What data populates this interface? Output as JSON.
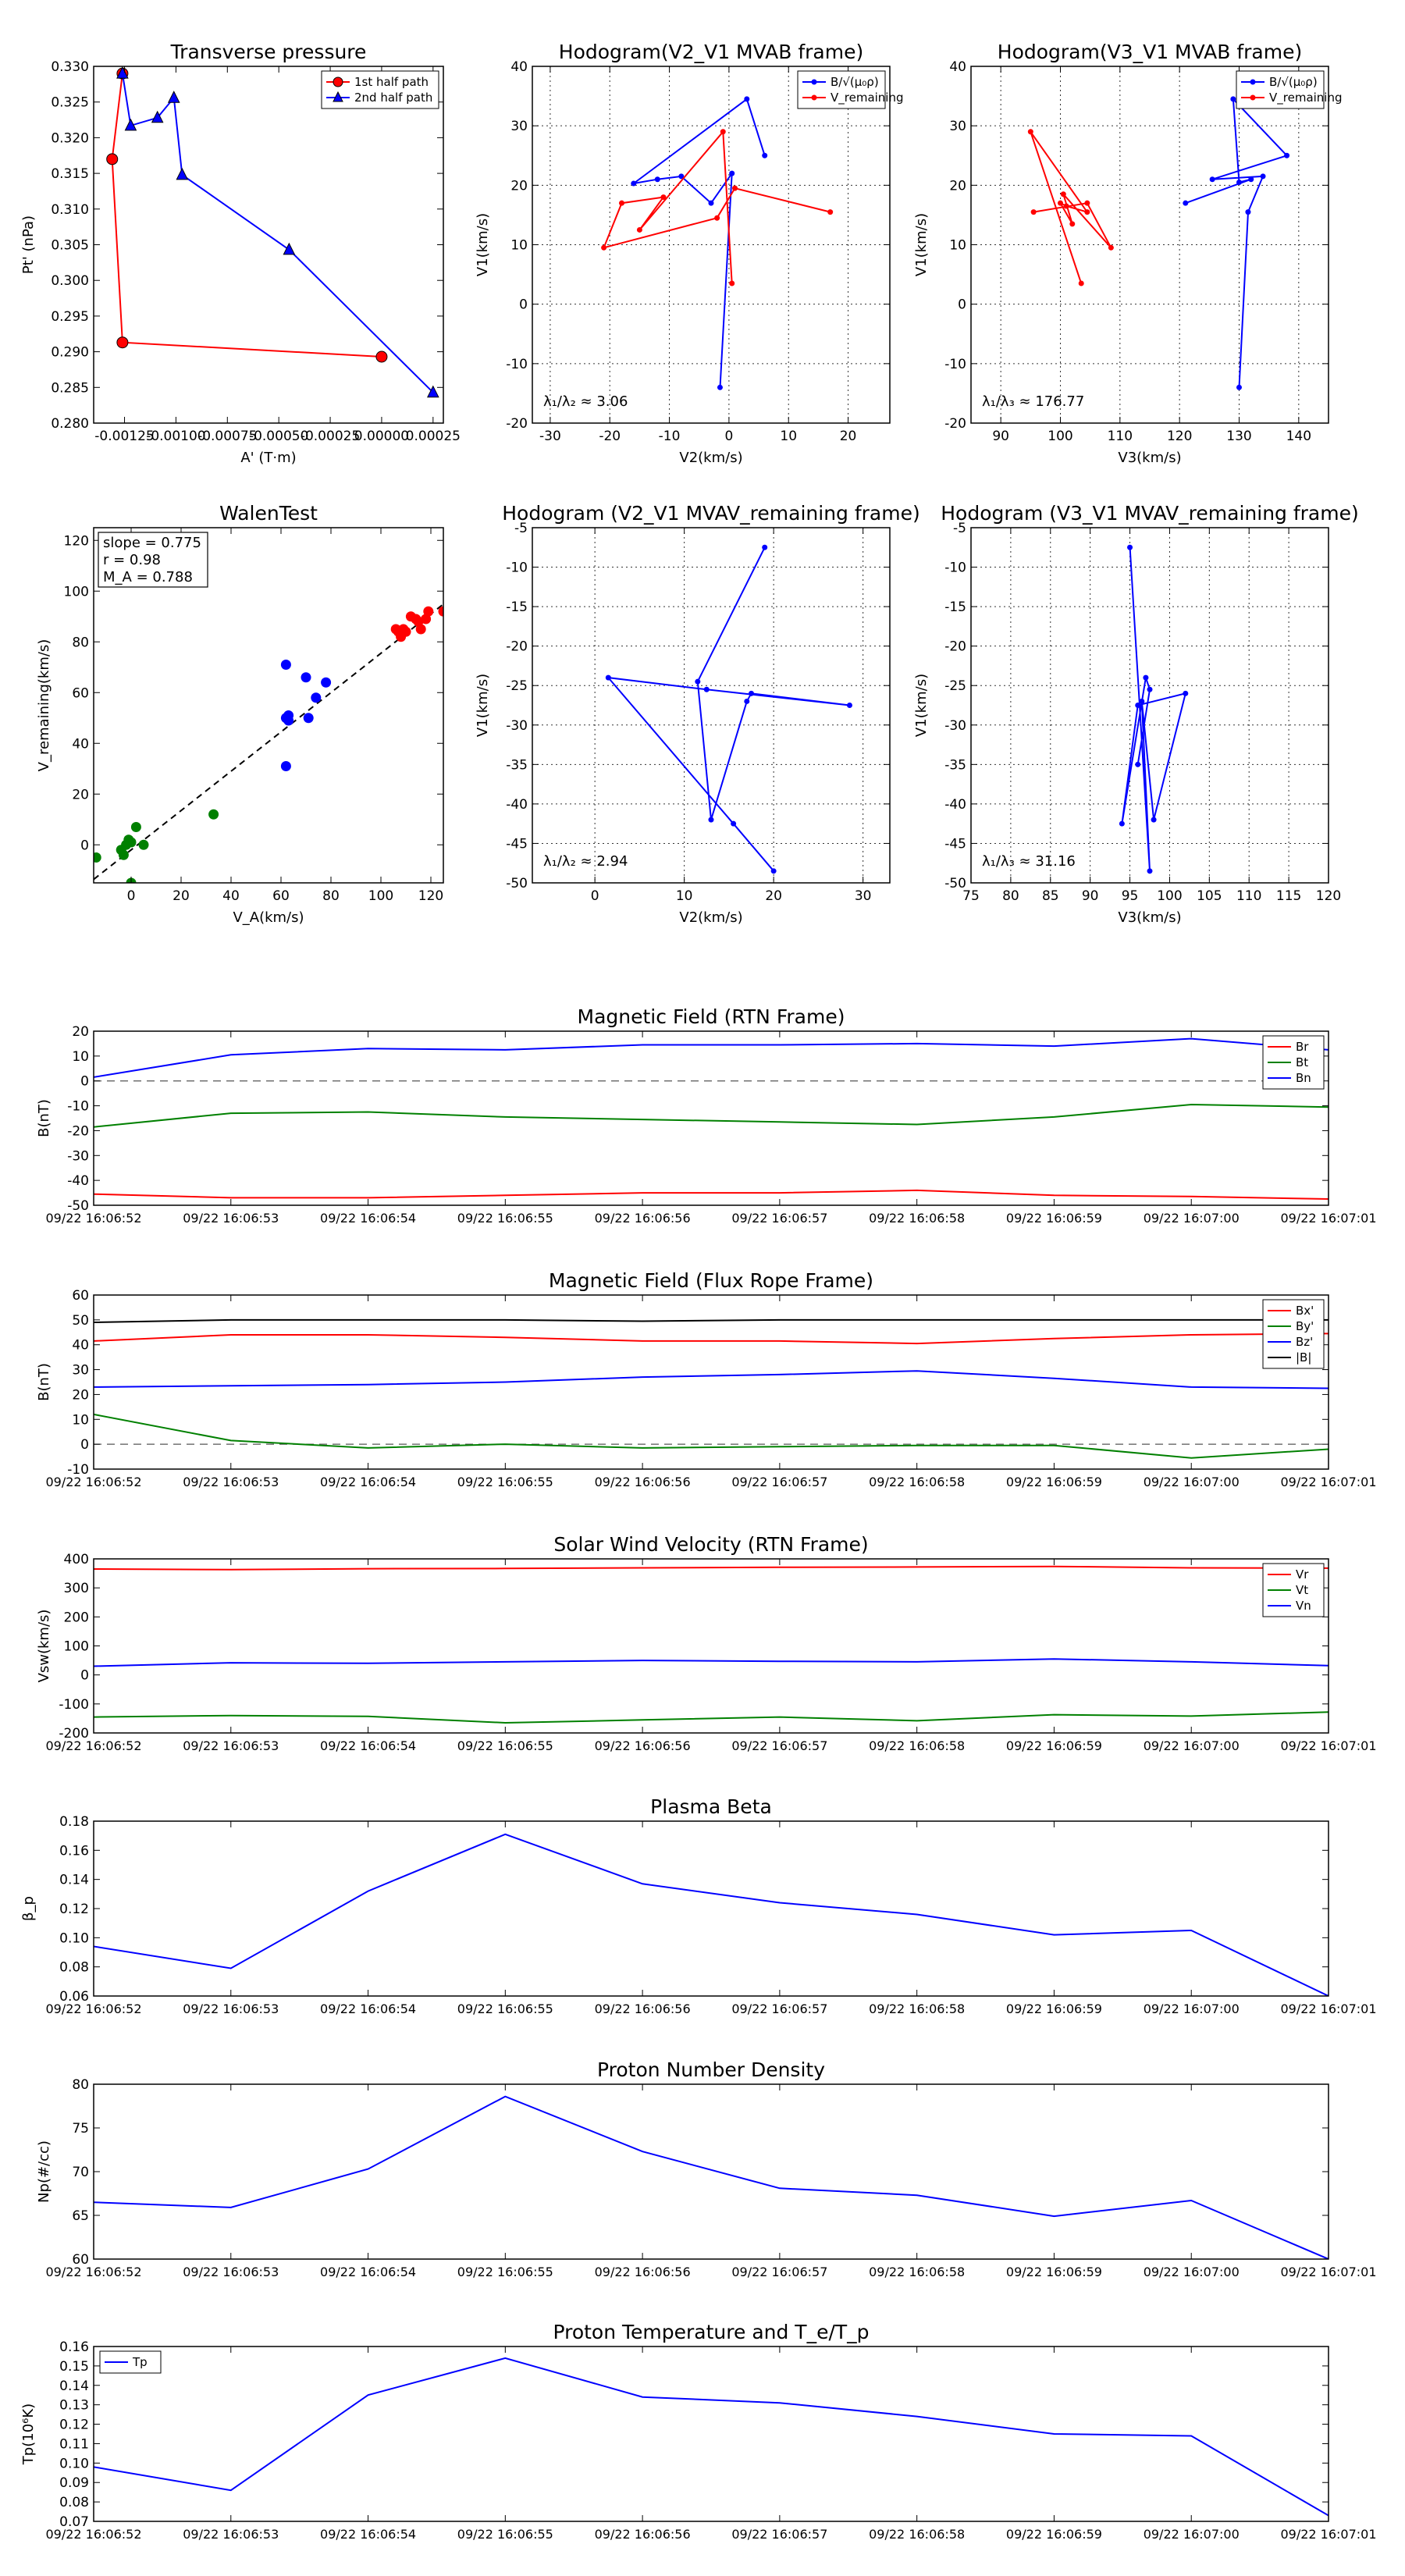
{
  "chart_data": [
    {
      "id": "tp",
      "type": "line",
      "title": "Transverse pressure",
      "xlabel": "A' (T·m)",
      "ylabel": "Pt' (nPa)",
      "xlim": [
        -0.0014,
        0.0003
      ],
      "ylim": [
        0.28,
        0.33
      ],
      "xticks": [
        -0.00125,
        -0.001,
        -0.00075,
        -0.0005,
        -0.00025,
        0.0,
        0.00025
      ],
      "xtick_labels": [
        "-0.00125",
        "-0.00100",
        "-0.00075",
        "-0.00050",
        "-0.00025",
        "0.00000",
        "0.00025"
      ],
      "yticks": [
        0.28,
        0.285,
        0.29,
        0.295,
        0.3,
        0.305,
        0.31,
        0.315,
        0.32,
        0.325,
        0.33
      ],
      "ytick_labels": [
        "0.280",
        "0.285",
        "0.290",
        "0.295",
        "0.300",
        "0.305",
        "0.310",
        "0.315",
        "0.320",
        "0.325",
        "0.330"
      ],
      "grid": false,
      "legend": "top-right",
      "series": [
        {
          "name": "1st half path",
          "color": "#ff0000",
          "marker": "circle",
          "x": [
            -0.00126,
            -0.00131,
            -0.00126,
            0.0
          ],
          "y": [
            0.329,
            0.317,
            0.2913,
            0.2893
          ]
        },
        {
          "name": "2nd half path",
          "color": "#0000ff",
          "marker": "triangle",
          "x": [
            -0.00126,
            -0.00122,
            -0.00109,
            -0.00101,
            -0.00097,
            -0.00045,
            0.00025
          ],
          "y": [
            0.329,
            0.3217,
            0.3228,
            0.3256,
            0.3148,
            0.3043,
            0.2843
          ]
        }
      ]
    },
    {
      "id": "h1",
      "type": "line",
      "title": "Hodogram(V2_V1 MVAB frame)",
      "xlabel": "V2(km/s)",
      "ylabel": "V1(km/s)",
      "xlim": [
        -33,
        27
      ],
      "ylim": [
        -20,
        40
      ],
      "xticks": [
        -30,
        -20,
        -10,
        0,
        10,
        20
      ],
      "yticks": [
        -20,
        -10,
        0,
        10,
        20,
        30,
        40
      ],
      "grid": true,
      "legend": "top-right",
      "annotation": "λ₁/λ₂ ≈ 3.06",
      "series": [
        {
          "name": "B/√(μ₀ρ)",
          "color": "#0000ff",
          "x": [
            -1.5,
            0.5,
            -3,
            -8,
            -12,
            -16,
            3,
            6
          ],
          "y": [
            -14,
            22,
            17,
            21.5,
            21,
            20.3,
            34.5,
            25
          ]
        },
        {
          "name": "V_remaining",
          "color": "#ff0000",
          "x": [
            0.5,
            -1,
            -15,
            -11,
            -18,
            -21,
            -2,
            1,
            17
          ],
          "y": [
            3.5,
            29,
            12.5,
            18,
            17,
            9.5,
            14.5,
            19.5,
            15.5
          ]
        }
      ]
    },
    {
      "id": "h2",
      "type": "line",
      "title": "Hodogram(V3_V1 MVAB frame)",
      "xlabel": "V3(km/s)",
      "ylabel": "V1(km/s)",
      "xlim": [
        85,
        145
      ],
      "ylim": [
        -20,
        40
      ],
      "xticks": [
        90,
        100,
        110,
        120,
        130,
        140
      ],
      "yticks": [
        -20,
        -10,
        0,
        10,
        20,
        30,
        40
      ],
      "grid": true,
      "legend": "top-right",
      "annotation": "λ₁/λ₃ ≈ 176.77",
      "series": [
        {
          "name": "B/√(μ₀ρ)",
          "color": "#0000ff",
          "x": [
            130,
            131.5,
            134,
            125.5,
            138,
            129,
            130,
            132,
            121
          ],
          "y": [
            -14,
            15.5,
            21.5,
            21,
            25,
            34.5,
            20.5,
            21,
            17
          ]
        },
        {
          "name": "V_remaining",
          "color": "#ff0000",
          "x": [
            103.5,
            95,
            104.5,
            101,
            100,
            102,
            100.5,
            108.5,
            104.5,
            95.5
          ],
          "y": [
            3.5,
            29,
            15.5,
            16.5,
            17,
            13.5,
            18.5,
            9.5,
            17,
            15.5
          ]
        }
      ]
    },
    {
      "id": "walen",
      "type": "scatter",
      "title": "WalenTest",
      "xlabel": "V_A(km/s)",
      "ylabel": "V_remaining(km/s)",
      "xlim": [
        -15,
        125
      ],
      "ylim": [
        -15,
        125
      ],
      "xticks": [
        0,
        20,
        40,
        60,
        80,
        100,
        120
      ],
      "yticks": [
        0,
        20,
        40,
        60,
        80,
        100,
        120
      ],
      "grid": false,
      "stats": [
        "slope = 0.775",
        "r = 0.98",
        "M_A = 0.788"
      ],
      "fit": {
        "slope": 0.775,
        "intercept": -2
      },
      "series": [
        {
          "name": "green",
          "color": "#008000",
          "x": [
            -14,
            -4,
            -2,
            -1,
            -3,
            0,
            2,
            5,
            33,
            0
          ],
          "y": [
            -5,
            -2,
            0,
            2,
            -4,
            1,
            7,
            0,
            12,
            -15
          ]
        },
        {
          "name": "blue",
          "color": "#0000ff",
          "x": [
            62,
            63,
            62,
            70,
            71,
            74,
            78,
            62,
            63
          ],
          "y": [
            71,
            51,
            50,
            66,
            50,
            58,
            64,
            31,
            49
          ]
        },
        {
          "name": "red",
          "color": "#ff0000",
          "x": [
            106,
            108,
            110,
            112,
            109,
            115,
            116,
            118,
            114,
            119,
            125,
            107
          ],
          "y": [
            85,
            82,
            84,
            90,
            85,
            88,
            85,
            89,
            89,
            92,
            92,
            84
          ]
        }
      ]
    },
    {
      "id": "h3",
      "type": "line",
      "title": "Hodogram (V2_V1 MVAV_remaining frame)",
      "xlabel": "V2(km/s)",
      "ylabel": "V1(km/s)",
      "xlim": [
        -7,
        33
      ],
      "ylim": [
        -50,
        -5
      ],
      "xticks": [
        0,
        10,
        20,
        30
      ],
      "yticks": [
        -50,
        -45,
        -40,
        -35,
        -30,
        -25,
        -20,
        -15,
        -10,
        -5
      ],
      "grid": true,
      "annotation": "λ₁/λ₂ ≈ 2.94",
      "series": [
        {
          "name": "line",
          "color": "#0000ff",
          "x": [
            19,
            11.5,
            13,
            17,
            17.5,
            28.5,
            12.5,
            1.5,
            15.5,
            20
          ],
          "y": [
            -7.5,
            -24.5,
            -42,
            -27,
            -26,
            -27.5,
            -25.5,
            -24,
            -42.5,
            -48.5
          ]
        }
      ]
    },
    {
      "id": "h4",
      "type": "line",
      "title": "Hodogram (V3_V1 MVAV_remaining frame)",
      "xlabel": "V3(km/s)",
      "ylabel": "V1(km/s)",
      "xlim": [
        75,
        120
      ],
      "ylim": [
        -50,
        -5
      ],
      "xticks": [
        75,
        80,
        85,
        90,
        95,
        100,
        105,
        110,
        115,
        120
      ],
      "yticks": [
        -50,
        -45,
        -40,
        -35,
        -30,
        -25,
        -20,
        -15,
        -10,
        -5
      ],
      "grid": true,
      "annotation": "λ₁/λ₃ ≈ 31.16",
      "series": [
        {
          "name": "line",
          "color": "#0000ff",
          "x": [
            95,
            97.5,
            96.5,
            98,
            102,
            96,
            94,
            97,
            97.5,
            96
          ],
          "y": [
            -7.5,
            -48.5,
            -27,
            -42,
            -26,
            -27.5,
            -42.5,
            -24,
            -25.5,
            -35
          ]
        }
      ]
    },
    {
      "id": "mag_rtn",
      "type": "line",
      "title": "Magnetic Field (RTN Frame)",
      "xlabel": "",
      "ylabel": "B(nT)",
      "categories": [
        "09/22 16:06:52",
        "09/22 16:06:53",
        "09/22 16:06:54",
        "09/22 16:06:55",
        "09/22 16:06:56",
        "09/22 16:06:57",
        "09/22 16:06:58",
        "09/22 16:06:59",
        "09/22 16:07:00",
        "09/22 16:07:01"
      ],
      "ylim": [
        -50,
        20
      ],
      "yticks": [
        -50,
        -40,
        -30,
        -20,
        -10,
        0,
        10,
        20
      ],
      "zero_line": true,
      "legend": "top-right",
      "series": [
        {
          "name": "Br",
          "color": "#ff0000",
          "values": [
            -45.5,
            -47,
            -47,
            -46,
            -45,
            -45,
            -44,
            -46,
            -46.5,
            -47.5
          ]
        },
        {
          "name": "Bt",
          "color": "#008000",
          "values": [
            -18.5,
            -13,
            -12.5,
            -14.5,
            -15.5,
            -16.5,
            -17.5,
            -14.5,
            -9.5,
            -10.5
          ]
        },
        {
          "name": "Bn",
          "color": "#0000ff",
          "values": [
            1.5,
            10.5,
            13,
            12.5,
            14.5,
            14.5,
            15,
            14,
            17,
            12.5
          ]
        }
      ]
    },
    {
      "id": "mag_fr",
      "type": "line",
      "title": "Magnetic Field (Flux Rope Frame)",
      "xlabel": "",
      "ylabel": "B(nT)",
      "categories": [
        "09/22 16:06:52",
        "09/22 16:06:53",
        "09/22 16:06:54",
        "09/22 16:06:55",
        "09/22 16:06:56",
        "09/22 16:06:57",
        "09/22 16:06:58",
        "09/22 16:06:59",
        "09/22 16:07:00",
        "09/22 16:07:01"
      ],
      "ylim": [
        -10,
        60
      ],
      "yticks": [
        -10,
        0,
        10,
        20,
        30,
        40,
        50,
        60
      ],
      "zero_line": true,
      "legend": "top-right",
      "series": [
        {
          "name": "Bx'",
          "color": "#ff0000",
          "values": [
            41.5,
            44,
            44,
            43,
            41.5,
            41.5,
            40.5,
            42.5,
            44,
            44.5
          ]
        },
        {
          "name": "By'",
          "color": "#008000",
          "values": [
            12,
            1.5,
            -1.5,
            0,
            -1.5,
            -1,
            -0.5,
            -0.5,
            -5.5,
            -2
          ]
        },
        {
          "name": "Bz'",
          "color": "#0000ff",
          "values": [
            23,
            23.5,
            24,
            25,
            27,
            28,
            29.5,
            26.5,
            23,
            22.5
          ]
        },
        {
          "name": "|B|",
          "color": "#000000",
          "values": [
            49,
            50,
            50,
            50,
            49.5,
            50,
            50,
            50,
            50,
            50
          ]
        }
      ]
    },
    {
      "id": "vsw",
      "type": "line",
      "title": "Solar Wind Velocity (RTN Frame)",
      "xlabel": "",
      "ylabel": "Vsw(km/s)",
      "categories": [
        "09/22 16:06:52",
        "09/22 16:06:53",
        "09/22 16:06:54",
        "09/22 16:06:55",
        "09/22 16:06:56",
        "09/22 16:06:57",
        "09/22 16:06:58",
        "09/22 16:06:59",
        "09/22 16:07:00",
        "09/22 16:07:01"
      ],
      "ylim": [
        -200,
        400
      ],
      "yticks": [
        -200,
        -100,
        0,
        100,
        200,
        300,
        400
      ],
      "legend": "top-right",
      "series": [
        {
          "name": "Vr",
          "color": "#ff0000",
          "values": [
            365,
            363,
            366,
            367,
            369,
            371,
            372,
            374,
            369,
            368
          ]
        },
        {
          "name": "Vt",
          "color": "#008000",
          "values": [
            -145,
            -140,
            -143,
            -165,
            -155,
            -145,
            -158,
            -137,
            -142,
            -128
          ]
        },
        {
          "name": "Vn",
          "color": "#0000ff",
          "values": [
            30,
            42,
            40,
            45,
            50,
            47,
            45,
            55,
            45,
            32
          ]
        }
      ]
    },
    {
      "id": "beta",
      "type": "line",
      "title": "Plasma Beta",
      "xlabel": "",
      "ylabel": "β_p",
      "categories": [
        "09/22 16:06:52",
        "09/22 16:06:53",
        "09/22 16:06:54",
        "09/22 16:06:55",
        "09/22 16:06:56",
        "09/22 16:06:57",
        "09/22 16:06:58",
        "09/22 16:06:59",
        "09/22 16:07:00",
        "09/22 16:07:01"
      ],
      "ylim": [
        0.06,
        0.18
      ],
      "yticks": [
        0.06,
        0.08,
        0.1,
        0.12,
        0.14,
        0.16,
        0.18
      ],
      "ytick_labels": [
        "0.06",
        "0.08",
        "0.10",
        "0.12",
        "0.14",
        "0.16",
        "0.18"
      ],
      "series": [
        {
          "name": "beta",
          "color": "#0000ff",
          "values": [
            0.094,
            0.079,
            0.132,
            0.171,
            0.137,
            0.124,
            0.116,
            0.102,
            0.105,
            0.06
          ]
        }
      ]
    },
    {
      "id": "np",
      "type": "line",
      "title": "Proton Number Density",
      "xlabel": "",
      "ylabel": "Np(#/cc)",
      "categories": [
        "09/22 16:06:52",
        "09/22 16:06:53",
        "09/22 16:06:54",
        "09/22 16:06:55",
        "09/22 16:06:56",
        "09/22 16:06:57",
        "09/22 16:06:58",
        "09/22 16:06:59",
        "09/22 16:07:00",
        "09/22 16:07:01"
      ],
      "ylim": [
        60,
        80
      ],
      "yticks": [
        60,
        65,
        70,
        75,
        80
      ],
      "series": [
        {
          "name": "Np",
          "color": "#0000ff",
          "values": [
            66.5,
            65.9,
            70.3,
            78.6,
            72.3,
            68.1,
            67.3,
            64.9,
            66.7,
            60
          ]
        }
      ]
    },
    {
      "id": "tp_temp",
      "type": "line",
      "title": "Proton Temperature and T_e/T_p",
      "xlabel": "",
      "ylabel": "Tp(10⁶K)",
      "categories": [
        "09/22 16:06:52",
        "09/22 16:06:53",
        "09/22 16:06:54",
        "09/22 16:06:55",
        "09/22 16:06:56",
        "09/22 16:06:57",
        "09/22 16:06:58",
        "09/22 16:06:59",
        "09/22 16:07:00",
        "09/22 16:07:01"
      ],
      "ylim": [
        0.07,
        0.16
      ],
      "yticks": [
        0.07,
        0.08,
        0.09,
        0.1,
        0.11,
        0.12,
        0.13,
        0.14,
        0.15,
        0.16
      ],
      "ytick_labels": [
        "0.07",
        "0.08",
        "0.09",
        "0.10",
        "0.11",
        "0.12",
        "0.13",
        "0.14",
        "0.15",
        "0.16"
      ],
      "legend": "top-left",
      "series": [
        {
          "name": "Tp",
          "color": "#0000ff",
          "values": [
            0.098,
            0.086,
            0.135,
            0.154,
            0.134,
            0.131,
            0.124,
            0.115,
            0.114,
            0.073
          ]
        }
      ]
    }
  ]
}
